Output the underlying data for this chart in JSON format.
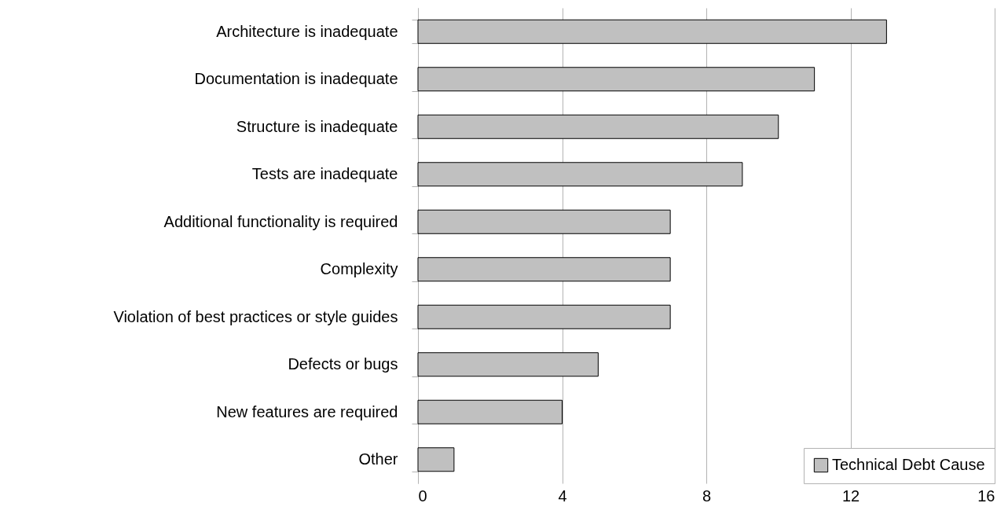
{
  "chart_data": {
    "type": "bar",
    "orientation": "horizontal",
    "categories": [
      "Architecture is inadequate",
      "Documentation is inadequate",
      "Structure is inadequate",
      "Tests are inadequate",
      "Additional functionality is required",
      "Complexity",
      "Violation of best practices or style guides",
      "Defects or bugs",
      "New features are required",
      "Other"
    ],
    "series": [
      {
        "name": "Technical Debt Cause",
        "color": "#c0c0c0",
        "values": [
          13,
          11,
          10,
          9,
          7,
          7,
          7,
          5,
          4,
          1
        ]
      }
    ],
    "xlim": [
      0,
      16
    ],
    "xticks": [
      0,
      4,
      8,
      12,
      16
    ],
    "grid": "x",
    "legend": "bottom right"
  }
}
